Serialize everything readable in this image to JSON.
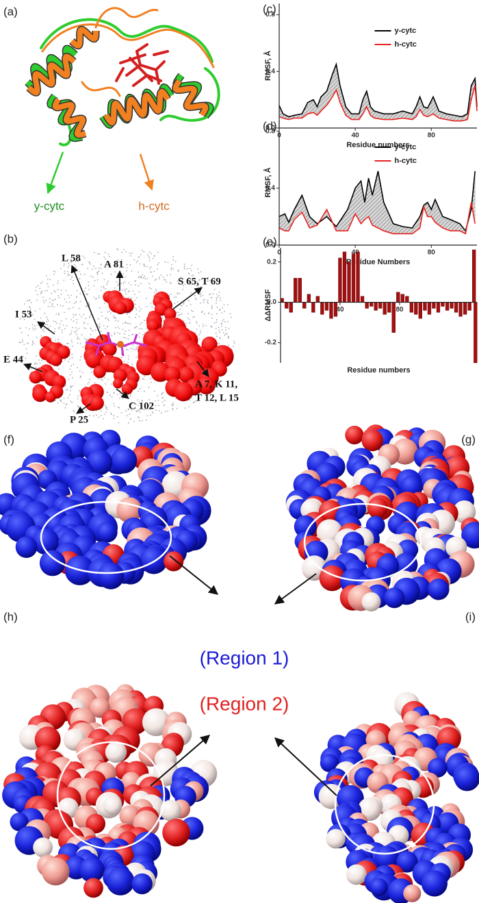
{
  "panels": {
    "a": {
      "label": "(a)",
      "annotations": [
        "y-cytc",
        "h-cytc"
      ]
    },
    "b": {
      "label": "(b)",
      "annotations": [
        "A 81",
        "S 65, T 69",
        "L 58",
        "I 53",
        "E 44",
        "A 7, K 11,",
        "T 12, L 15",
        "P 25",
        "C 102"
      ]
    },
    "f": {
      "label": "(f)"
    },
    "g": {
      "label": "(g)"
    },
    "h": {
      "label": "(h)"
    },
    "i": {
      "label": "(i)"
    },
    "regions": [
      "(Region 1)",
      "(Region 2)"
    ]
  },
  "chart_data": [
    {
      "type": "line",
      "panel_label": "(c)",
      "x_label": "Residue numbers",
      "y_label": "RMSF, Å",
      "x": [
        0,
        2,
        5,
        8,
        12,
        15,
        18,
        20,
        22,
        25,
        28,
        30,
        32,
        35,
        38,
        42,
        44,
        46,
        48,
        50,
        55,
        60,
        65,
        70,
        72,
        74,
        76,
        78,
        81,
        84,
        88,
        92,
        96,
        99,
        101,
        103,
        104
      ],
      "series": [
        {
          "name": "y-cytc",
          "color": "#000000",
          "values": [
            0.16,
            0.1,
            0.08,
            0.09,
            0.1,
            0.18,
            0.2,
            0.15,
            0.22,
            0.26,
            0.38,
            0.45,
            0.3,
            0.15,
            0.1,
            0.1,
            0.2,
            0.26,
            0.15,
            0.12,
            0.1,
            0.1,
            0.12,
            0.1,
            0.15,
            0.22,
            0.15,
            0.14,
            0.22,
            0.12,
            0.1,
            0.09,
            0.08,
            0.1,
            0.3,
            0.35,
            0.15
          ]
        },
        {
          "name": "h-cytc",
          "color": "#e8231f",
          "values": [
            0.08,
            0.07,
            0.06,
            0.07,
            0.07,
            0.1,
            0.11,
            0.09,
            0.12,
            0.16,
            0.22,
            0.27,
            0.18,
            0.09,
            0.06,
            0.06,
            0.1,
            0.15,
            0.09,
            0.07,
            0.06,
            0.06,
            0.07,
            0.06,
            0.08,
            0.13,
            0.09,
            0.08,
            0.1,
            0.07,
            0.06,
            0.05,
            0.05,
            0.06,
            0.2,
            0.3,
            0.12
          ]
        }
      ],
      "xlim": [
        0,
        104
      ],
      "ylim": [
        0,
        0.88
      ],
      "xticks": [
        0,
        40,
        80
      ],
      "yticks": [
        {
          "value": 0,
          "label": "0.0"
        },
        0.4,
        0.8
      ],
      "fill_between": "#b5b5b5",
      "legend": "upper center"
    },
    {
      "type": "line",
      "panel_label": "(d)",
      "x_label": "Residue Numbers",
      "y_label": "RMSF, Å",
      "x": [
        0,
        3,
        5,
        8,
        12,
        16,
        20,
        25,
        30,
        36,
        40,
        43,
        45,
        47,
        49,
        52,
        55,
        60,
        65,
        70,
        74,
        76,
        78,
        80,
        82,
        86,
        90,
        95,
        98,
        101,
        103
      ],
      "series": [
        {
          "name": "y-cytc",
          "color": "#000000",
          "values": [
            0.2,
            0.22,
            0.16,
            0.25,
            0.35,
            0.2,
            0.15,
            0.2,
            0.13,
            0.25,
            0.4,
            0.45,
            0.3,
            0.47,
            0.35,
            0.52,
            0.3,
            0.15,
            0.13,
            0.12,
            0.2,
            0.28,
            0.3,
            0.25,
            0.32,
            0.2,
            0.18,
            0.15,
            0.1,
            0.25,
            0.52
          ]
        },
        {
          "name": "h-cytc",
          "color": "#e8231f",
          "values": [
            0.12,
            0.1,
            0.1,
            0.18,
            0.23,
            0.12,
            0.14,
            0.25,
            0.1,
            0.1,
            0.22,
            0.15,
            0.18,
            0.2,
            0.14,
            0.12,
            0.1,
            0.08,
            0.08,
            0.08,
            0.12,
            0.27,
            0.2,
            0.2,
            0.16,
            0.12,
            0.1,
            0.1,
            0.08,
            0.3,
            0.15
          ]
        }
      ],
      "xlim": [
        0,
        104
      ],
      "ylim": [
        0,
        0.88
      ],
      "xticks": [
        0,
        40,
        80
      ],
      "yticks": [
        {
          "value": 0,
          "label": "0.0"
        },
        0.4,
        0.8
      ],
      "fill_between": "#b5b5b5",
      "legend": "upper center"
    },
    {
      "type": "bar",
      "panel_label": "(e)",
      "x_label": "Residue numbers",
      "y_label": "ΔΔRMSF",
      "x": [
        1,
        4,
        7,
        10,
        13,
        16,
        19,
        22,
        25,
        28,
        31,
        34,
        37,
        40,
        43,
        46,
        49,
        52,
        55,
        58,
        61,
        64,
        67,
        70,
        73,
        76,
        79,
        82,
        85,
        88,
        91,
        94,
        97,
        100,
        103,
        106,
        109,
        112,
        115,
        118,
        121,
        124,
        127,
        130,
        131
      ],
      "values": [
        0.02,
        -0.03,
        -0.05,
        0.12,
        0.12,
        -0.03,
        0.04,
        -0.05,
        0.03,
        -0.06,
        -0.04,
        -0.08,
        -0.07,
        0.22,
        0.25,
        0.2,
        0.24,
        0.25,
        0.03,
        -0.03,
        -0.02,
        -0.04,
        -0.03,
        -0.06,
        -0.05,
        -0.15,
        0.05,
        0.04,
        0.03,
        -0.05,
        -0.06,
        -0.08,
        -0.04,
        -0.06,
        -0.03,
        -0.05,
        -0.02,
        -0.04,
        -0.03,
        -0.05,
        -0.07,
        -0.06,
        -0.04,
        0.26,
        -0.3
      ],
      "color": "#a01010",
      "xlim": [
        0,
        132
      ],
      "ylim": [
        -0.3,
        0.27
      ],
      "xticks": [
        40,
        80
      ],
      "yticks": [
        -0.2,
        {
          "value": 0,
          "label": "0.0"
        },
        0.2
      ]
    }
  ]
}
